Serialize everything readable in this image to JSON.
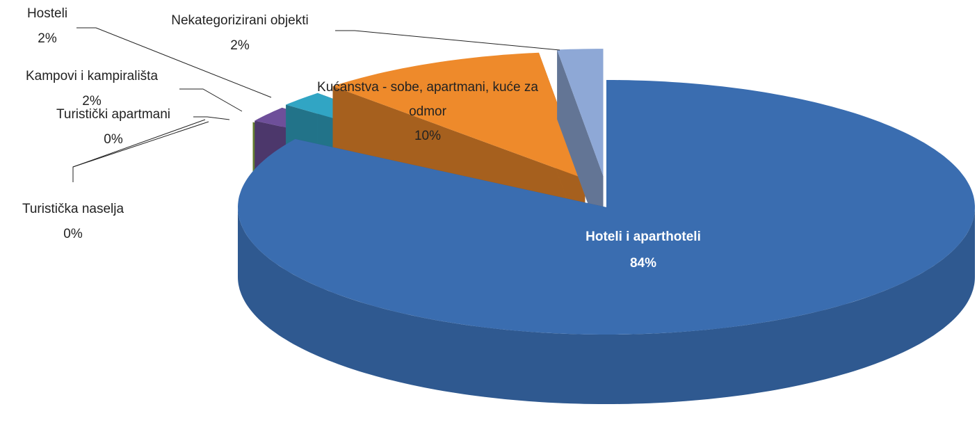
{
  "chart_data": {
    "type": "pie",
    "categories": [
      "Hoteli i aparthoteli",
      "Turistička naselja",
      "Turistički apartmani",
      "Kampovi i kampirališta",
      "Hosteli",
      "Kućanstva - sobe, apartmani, kuće za odmor",
      "Nekategorizirani objekti"
    ],
    "values": [
      84,
      0,
      0,
      2,
      2,
      10,
      2
    ],
    "value_labels": [
      "84%",
      "0%",
      "0%",
      "2%",
      "2%",
      "10%",
      "2%"
    ],
    "colors": [
      "#3a6db0",
      "#c0393b",
      "#8db543",
      "#6e4f9a",
      "#31a5c4",
      "#ee8a2b",
      "#8ea8d6"
    ]
  }
}
